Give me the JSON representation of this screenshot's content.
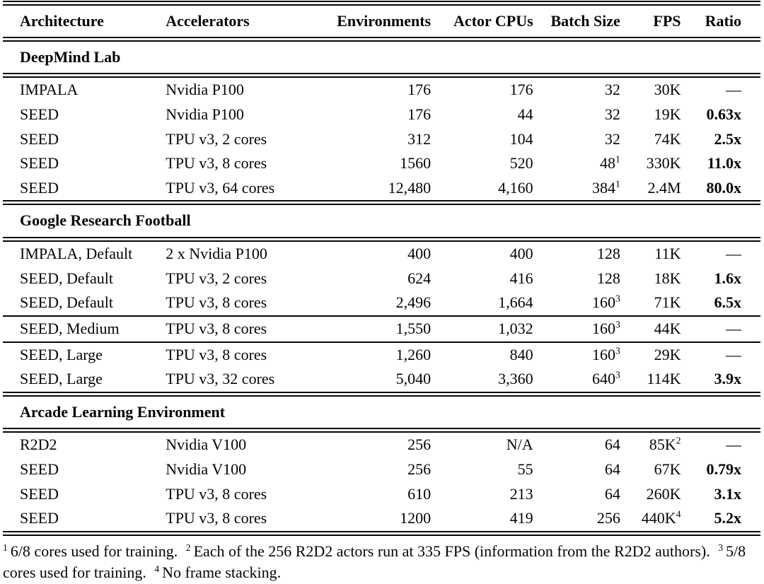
{
  "table": {
    "columns": [
      "Architecture",
      "Accelerators",
      "Environments",
      "Actor CPUs",
      "Batch Size",
      "FPS",
      "Ratio"
    ],
    "column_keys": [
      "architecture",
      "accelerators",
      "environments",
      "actor_cpus",
      "batch_size",
      "fps",
      "ratio"
    ],
    "sections": [
      {
        "title": "DeepMind Lab",
        "groups": [
          [
            {
              "architecture": "IMPALA",
              "accelerators": "Nvidia P100",
              "environments": "176",
              "actor_cpus": "176",
              "batch_size": "32",
              "fps": "30K",
              "ratio": "—",
              "ratio_bold": false
            },
            {
              "architecture": "SEED",
              "accelerators": "Nvidia P100",
              "environments": "176",
              "actor_cpus": "44",
              "batch_size": "32",
              "fps": "19K",
              "ratio": "0.63x",
              "ratio_bold": true
            },
            {
              "architecture": "SEED",
              "accelerators": "TPU v3, 2 cores",
              "environments": "312",
              "actor_cpus": "104",
              "batch_size": "32",
              "fps": "74K",
              "ratio": "2.5x",
              "ratio_bold": true
            },
            {
              "architecture": "SEED",
              "accelerators": "TPU v3, 8 cores",
              "environments": "1560",
              "actor_cpus": "520",
              "batch_size": "48",
              "batch_size_sup": "1",
              "fps": "330K",
              "ratio": "11.0x",
              "ratio_bold": true
            },
            {
              "architecture": "SEED",
              "accelerators": "TPU v3, 64 cores",
              "environments": "12,480",
              "actor_cpus": "4,160",
              "batch_size": "384",
              "batch_size_sup": "1",
              "fps": "2.4M",
              "ratio": "80.0x",
              "ratio_bold": true
            }
          ]
        ]
      },
      {
        "title": "Google Research Football",
        "groups": [
          [
            {
              "architecture": "IMPALA, Default",
              "accelerators": "2 x Nvidia P100",
              "environments": "400",
              "actor_cpus": "400",
              "batch_size": "128",
              "fps": "11K",
              "ratio": "—",
              "ratio_bold": false
            },
            {
              "architecture": "SEED, Default",
              "accelerators": "TPU v3, 2 cores",
              "environments": "624",
              "actor_cpus": "416",
              "batch_size": "128",
              "fps": "18K",
              "ratio": "1.6x",
              "ratio_bold": true
            },
            {
              "architecture": "SEED, Default",
              "accelerators": "TPU v3, 8 cores",
              "environments": "2,496",
              "actor_cpus": "1,664",
              "batch_size": "160",
              "batch_size_sup": "3",
              "fps": "71K",
              "ratio": "6.5x",
              "ratio_bold": true
            }
          ],
          [
            {
              "architecture": "SEED, Medium",
              "accelerators": "TPU v3, 8 cores",
              "environments": "1,550",
              "actor_cpus": "1,032",
              "batch_size": "160",
              "batch_size_sup": "3",
              "fps": "44K",
              "ratio": "—",
              "ratio_bold": false
            }
          ],
          [
            {
              "architecture": "SEED, Large",
              "accelerators": "TPU v3, 8 cores",
              "environments": "1,260",
              "actor_cpus": "840",
              "batch_size": "160",
              "batch_size_sup": "3",
              "fps": "29K",
              "ratio": "—",
              "ratio_bold": false
            },
            {
              "architecture": "SEED, Large",
              "accelerators": "TPU v3, 32 cores",
              "environments": "5,040",
              "actor_cpus": "3,360",
              "batch_size": "640",
              "batch_size_sup": "3",
              "fps": "114K",
              "ratio": "3.9x",
              "ratio_bold": true
            }
          ]
        ]
      },
      {
        "title": "Arcade Learning Environment",
        "groups": [
          [
            {
              "architecture": "R2D2",
              "accelerators": "Nvidia V100",
              "environments": "256",
              "actor_cpus": "N/A",
              "batch_size": "64",
              "fps": "85K",
              "fps_sup": "2",
              "ratio": "—",
              "ratio_bold": false
            },
            {
              "architecture": "SEED",
              "accelerators": "Nvidia V100",
              "environments": "256",
              "actor_cpus": "55",
              "batch_size": "64",
              "fps": "67K",
              "ratio": "0.79x",
              "ratio_bold": true
            },
            {
              "architecture": "SEED",
              "accelerators": "TPU v3, 8 cores",
              "environments": "610",
              "actor_cpus": "213",
              "batch_size": "64",
              "fps": "260K",
              "ratio": "3.1x",
              "ratio_bold": true
            },
            {
              "architecture": "SEED",
              "accelerators": "TPU v3, 8 cores",
              "environments": "1200",
              "actor_cpus": "419",
              "batch_size": "256",
              "fps": "440K",
              "fps_sup": "4",
              "ratio": "5.2x",
              "ratio_bold": true
            }
          ]
        ]
      }
    ]
  },
  "footnotes": [
    {
      "marker": "1",
      "text": "6/8 cores used for training."
    },
    {
      "marker": "2",
      "text": "Each of the 256 R2D2 actors run at 335 FPS (information from the R2D2 authors)."
    },
    {
      "marker": "3",
      "text": "5/8 cores used for training."
    },
    {
      "marker": "4",
      "text": "No frame stacking."
    }
  ]
}
